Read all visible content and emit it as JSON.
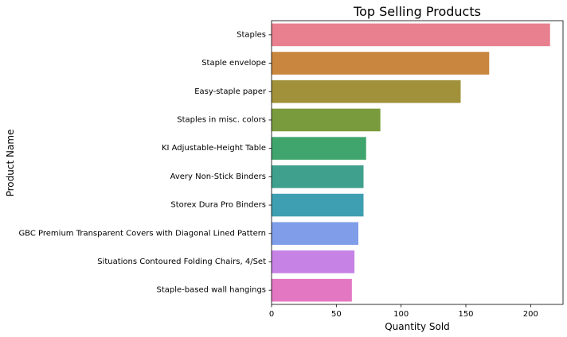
{
  "chart_data": {
    "type": "bar",
    "orientation": "horizontal",
    "title": "Top Selling Products",
    "xlabel": "Quantity Sold",
    "ylabel": "Product Name",
    "xlim": [
      0,
      225
    ],
    "xticks": [
      0,
      50,
      100,
      150,
      200
    ],
    "grid": false,
    "categories": [
      "Staples",
      "Staple envelope",
      "Easy-staple paper",
      "Staples in misc. colors",
      "KI Adjustable-Height Table",
      "Avery Non-Stick Binders",
      "Storex Dura Pro Binders",
      "GBC Premium Transparent Covers with Diagonal Lined Pattern",
      "Situations Contoured Folding Chairs, 4/Set",
      "Staple-based wall hangings"
    ],
    "values": [
      215,
      168,
      146,
      84,
      73,
      71,
      71,
      67,
      64,
      62
    ],
    "colors": [
      "#e8808f",
      "#c9863f",
      "#a0913a",
      "#799b3d",
      "#40a56d",
      "#3fa08d",
      "#3f9fb2",
      "#7f9de8",
      "#c782e5",
      "#e377c2"
    ]
  }
}
